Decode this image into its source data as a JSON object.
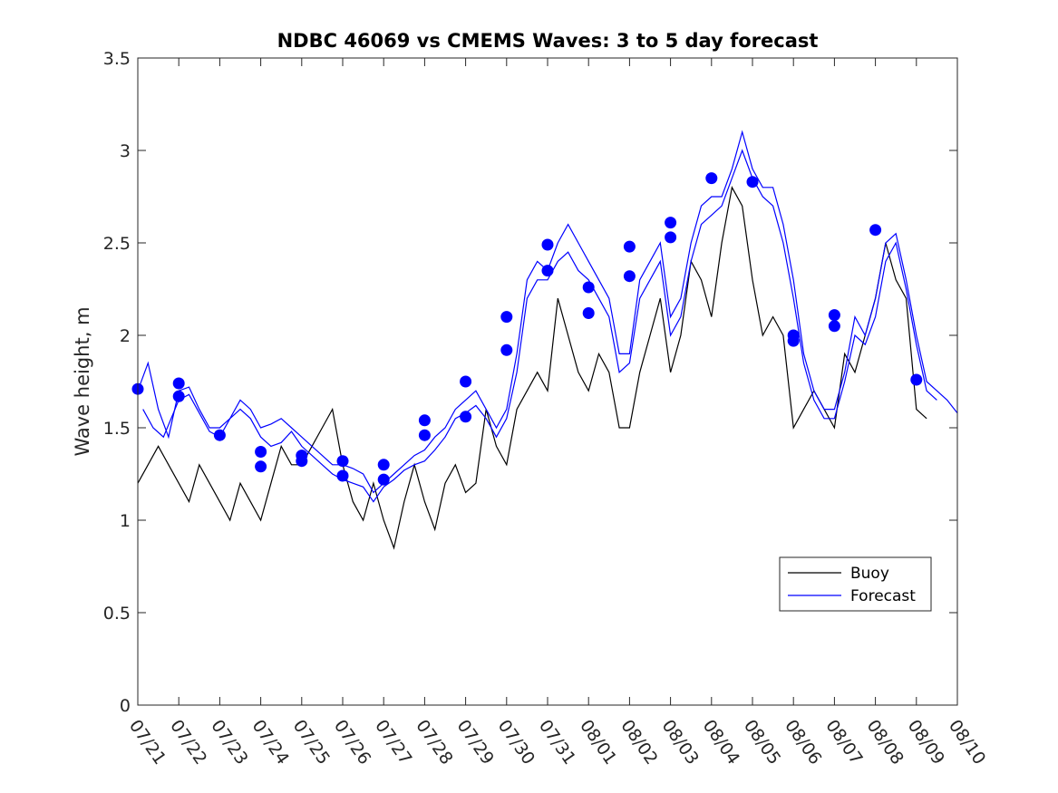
{
  "chart_data": {
    "type": "line",
    "title": "NDBC 46069 vs CMEMS Waves: 3 to 5 day forecast",
    "xlabel": "",
    "ylabel": "Wave height, m",
    "ylim": [
      0,
      3.5
    ],
    "yticks": [
      "0",
      "0.5",
      "1",
      "1.5",
      "2",
      "2.5",
      "3",
      "3.5"
    ],
    "xlim": [
      "07/21",
      "08/10"
    ],
    "xticks": [
      "07/21",
      "07/22",
      "07/23",
      "07/24",
      "07/25",
      "07/26",
      "07/27",
      "07/28",
      "07/29",
      "07/30",
      "07/31",
      "08/01",
      "08/02",
      "08/03",
      "08/04",
      "08/05",
      "08/06",
      "08/07",
      "08/08",
      "08/09",
      "08/10"
    ],
    "grid": false,
    "legend": {
      "position": "bottom-right",
      "entries": [
        "Buoy",
        "Forecast"
      ]
    },
    "colors": {
      "buoy": "#000000",
      "forecast": "#0000ff",
      "markers": "#0000ff"
    },
    "series": [
      {
        "name": "Buoy",
        "x": [
          "07/21 00:00",
          "07/21 06:00",
          "07/21 12:00",
          "07/21 18:00",
          "07/22 00:00",
          "07/22 06:00",
          "07/22 12:00",
          "07/22 18:00",
          "07/23 00:00",
          "07/23 06:00",
          "07/23 12:00",
          "07/23 18:00",
          "07/24 00:00",
          "07/24 06:00",
          "07/24 12:00",
          "07/24 18:00",
          "07/25 00:00",
          "07/25 06:00",
          "07/25 12:00",
          "07/25 18:00",
          "07/26 00:00",
          "07/26 06:00",
          "07/26 12:00",
          "07/26 18:00",
          "07/27 00:00",
          "07/27 06:00",
          "07/27 12:00",
          "07/27 18:00",
          "07/28 00:00",
          "07/28 06:00",
          "07/28 12:00",
          "07/28 18:00",
          "07/29 00:00",
          "07/29 06:00",
          "07/29 12:00",
          "07/29 18:00",
          "07/30 00:00",
          "07/30 06:00",
          "07/30 12:00",
          "07/30 18:00",
          "07/31 00:00",
          "07/31 06:00",
          "07/31 12:00",
          "07/31 18:00",
          "08/01 00:00",
          "08/01 06:00",
          "08/01 12:00",
          "08/01 18:00",
          "08/02 00:00",
          "08/02 06:00",
          "08/02 12:00",
          "08/02 18:00",
          "08/03 00:00",
          "08/03 06:00",
          "08/03 12:00",
          "08/03 18:00",
          "08/04 00:00",
          "08/04 06:00",
          "08/04 12:00",
          "08/04 18:00",
          "08/05 00:00",
          "08/05 06:00",
          "08/05 12:00",
          "08/05 18:00",
          "08/06 00:00",
          "08/06 06:00",
          "08/06 12:00",
          "08/06 18:00",
          "08/07 00:00",
          "08/07 06:00",
          "08/07 12:00",
          "08/07 18:00",
          "08/08 00:00",
          "08/08 06:00",
          "08/08 12:00",
          "08/08 18:00",
          "08/09 00:00",
          "08/09 06:00"
        ],
        "values": [
          1.2,
          1.3,
          1.4,
          1.3,
          1.2,
          1.1,
          1.3,
          1.2,
          1.1,
          1.0,
          1.2,
          1.1,
          1.0,
          1.2,
          1.4,
          1.3,
          1.3,
          1.4,
          1.5,
          1.6,
          1.3,
          1.1,
          1.0,
          1.2,
          1.0,
          0.85,
          1.1,
          1.3,
          1.1,
          0.95,
          1.2,
          1.3,
          1.15,
          1.2,
          1.6,
          1.4,
          1.3,
          1.6,
          1.7,
          1.8,
          1.7,
          2.2,
          2.0,
          1.8,
          1.7,
          1.9,
          1.8,
          1.5,
          1.5,
          1.8,
          2.0,
          2.2,
          1.8,
          2.0,
          2.4,
          2.3,
          2.1,
          2.5,
          2.8,
          2.7,
          2.3,
          2.0,
          2.1,
          2.0,
          1.5,
          1.6,
          1.7,
          1.6,
          1.5,
          1.9,
          1.8,
          2.0,
          2.2,
          2.5,
          2.3,
          2.2,
          1.6,
          1.55
        ]
      },
      {
        "name": "Forecast",
        "x": [
          "07/21 00:00",
          "07/21 06:00",
          "07/21 12:00",
          "07/21 18:00",
          "07/22 00:00",
          "07/22 06:00",
          "07/22 12:00",
          "07/22 18:00",
          "07/23 00:00",
          "07/23 06:00",
          "07/23 12:00",
          "07/23 18:00",
          "07/24 00:00",
          "07/24 06:00",
          "07/24 12:00",
          "07/24 18:00",
          "07/25 00:00",
          "07/25 06:00",
          "07/25 12:00",
          "07/25 18:00",
          "07/26 00:00",
          "07/26 06:00",
          "07/26 12:00",
          "07/26 18:00",
          "07/27 00:00",
          "07/27 06:00",
          "07/27 12:00",
          "07/27 18:00",
          "07/28 00:00",
          "07/28 06:00",
          "07/28 12:00",
          "07/28 18:00",
          "07/29 00:00",
          "07/29 06:00",
          "07/29 12:00",
          "07/29 18:00",
          "07/30 00:00",
          "07/30 06:00",
          "07/30 12:00",
          "07/30 18:00",
          "07/31 00:00",
          "07/31 06:00",
          "07/31 12:00",
          "07/31 18:00",
          "08/01 00:00",
          "08/01 06:00",
          "08/01 12:00",
          "08/01 18:00",
          "08/02 00:00",
          "08/02 06:00",
          "08/02 12:00",
          "08/02 18:00",
          "08/03 00:00",
          "08/03 06:00",
          "08/03 12:00",
          "08/03 18:00",
          "08/04 00:00",
          "08/04 06:00",
          "08/04 12:00",
          "08/04 18:00",
          "08/05 00:00",
          "08/05 06:00",
          "08/05 12:00",
          "08/05 18:00",
          "08/06 00:00",
          "08/06 06:00",
          "08/06 12:00",
          "08/06 18:00",
          "08/07 00:00",
          "08/07 06:00",
          "08/07 12:00",
          "08/07 18:00",
          "08/08 00:00",
          "08/08 06:00",
          "08/08 12:00",
          "08/08 18:00",
          "08/09 00:00",
          "08/09 06:00",
          "08/09 12:00",
          "08/09 18:00",
          "08/10 00:00"
        ],
        "values": [
          1.7,
          1.85,
          1.6,
          1.45,
          1.7,
          1.72,
          1.6,
          1.5,
          1.5,
          1.55,
          1.65,
          1.6,
          1.5,
          1.52,
          1.55,
          1.5,
          1.45,
          1.4,
          1.35,
          1.3,
          1.3,
          1.28,
          1.25,
          1.15,
          1.2,
          1.25,
          1.3,
          1.35,
          1.38,
          1.45,
          1.5,
          1.6,
          1.65,
          1.7,
          1.6,
          1.5,
          1.6,
          1.9,
          2.3,
          2.4,
          2.35,
          2.5,
          2.6,
          2.5,
          2.4,
          2.3,
          2.2,
          1.9,
          1.9,
          2.3,
          2.4,
          2.5,
          2.1,
          2.2,
          2.5,
          2.7,
          2.75,
          2.75,
          2.9,
          3.1,
          2.9,
          2.8,
          2.8,
          2.6,
          2.3,
          1.9,
          1.7,
          1.6,
          1.6,
          1.8,
          2.1,
          2.0,
          2.2,
          2.5,
          2.55,
          2.3,
          2.0,
          1.75,
          1.7,
          1.65,
          1.58
        ]
      },
      {
        "name": "",
        "x": [
          "07/21 03:00",
          "07/21 09:00",
          "07/21 15:00",
          "07/22 00:00",
          "07/22 06:00",
          "07/22 12:00",
          "07/22 18:00",
          "07/23 00:00",
          "07/23 06:00",
          "07/23 12:00",
          "07/23 18:00",
          "07/24 00:00",
          "07/24 06:00",
          "07/24 12:00",
          "07/24 18:00",
          "07/25 00:00",
          "07/25 06:00",
          "07/25 12:00",
          "07/25 18:00",
          "07/26 00:00",
          "07/26 06:00",
          "07/26 12:00",
          "07/26 18:00",
          "07/27 00:00",
          "07/27 06:00",
          "07/27 12:00",
          "07/27 18:00",
          "07/28 00:00",
          "07/28 06:00",
          "07/28 12:00",
          "07/28 18:00",
          "07/29 00:00",
          "07/29 06:00",
          "07/29 12:00",
          "07/29 18:00",
          "07/30 00:00",
          "07/30 06:00",
          "07/30 12:00",
          "07/30 18:00",
          "07/31 00:00",
          "07/31 06:00",
          "07/31 12:00",
          "07/31 18:00",
          "08/01 00:00",
          "08/01 06:00",
          "08/01 12:00",
          "08/01 18:00",
          "08/02 00:00",
          "08/02 06:00",
          "08/02 12:00",
          "08/02 18:00",
          "08/03 00:00",
          "08/03 06:00",
          "08/03 12:00",
          "08/03 18:00",
          "08/04 00:00",
          "08/04 06:00",
          "08/04 12:00",
          "08/04 18:00",
          "08/05 00:00",
          "08/05 06:00",
          "08/05 12:00",
          "08/05 18:00",
          "08/06 00:00",
          "08/06 06:00",
          "08/06 12:00",
          "08/06 18:00",
          "08/07 00:00",
          "08/07 06:00",
          "08/07 12:00",
          "08/07 18:00",
          "08/08 00:00",
          "08/08 06:00",
          "08/08 12:00",
          "08/08 18:00",
          "08/09 00:00",
          "08/09 06:00",
          "08/09 12:00"
        ],
        "values": [
          1.6,
          1.5,
          1.45,
          1.65,
          1.68,
          1.58,
          1.48,
          1.45,
          1.55,
          1.6,
          1.55,
          1.45,
          1.4,
          1.42,
          1.48,
          1.4,
          1.35,
          1.3,
          1.25,
          1.22,
          1.2,
          1.18,
          1.1,
          1.18,
          1.22,
          1.27,
          1.3,
          1.32,
          1.38,
          1.45,
          1.55,
          1.58,
          1.62,
          1.55,
          1.45,
          1.55,
          1.8,
          2.2,
          2.3,
          2.3,
          2.4,
          2.45,
          2.35,
          2.3,
          2.2,
          2.1,
          1.8,
          1.85,
          2.2,
          2.3,
          2.4,
          2.0,
          2.1,
          2.4,
          2.6,
          2.65,
          2.7,
          2.85,
          3.0,
          2.85,
          2.75,
          2.7,
          2.5,
          2.2,
          1.85,
          1.65,
          1.55,
          1.55,
          1.75,
          2.0,
          1.95,
          2.1,
          2.4,
          2.5,
          2.25,
          1.95,
          1.7,
          1.65
        ]
      }
    ],
    "markers": {
      "x": [
        "07/21 00:00",
        "07/22 00:00",
        "07/22 00:00",
        "07/23 00:00",
        "07/24 00:00",
        "07/24 00:00",
        "07/25 00:00",
        "07/25 00:00",
        "07/26 00:00",
        "07/26 00:00",
        "07/27 00:00",
        "07/27 00:00",
        "07/28 00:00",
        "07/28 00:00",
        "07/29 00:00",
        "07/29 00:00",
        "07/30 00:00",
        "07/30 00:00",
        "07/31 00:00",
        "07/31 00:00",
        "08/01 00:00",
        "08/01 00:00",
        "08/02 00:00",
        "08/02 00:00",
        "08/03 00:00",
        "08/03 00:00",
        "08/04 00:00",
        "08/05 00:00",
        "08/06 00:00",
        "08/06 00:00",
        "08/07 00:00",
        "08/07 00:00",
        "08/08 00:00",
        "08/09 00:00"
      ],
      "values": [
        1.71,
        1.74,
        1.67,
        1.46,
        1.37,
        1.29,
        1.35,
        1.32,
        1.32,
        1.24,
        1.3,
        1.22,
        1.54,
        1.46,
        1.75,
        1.56,
        2.1,
        1.92,
        2.49,
        2.35,
        2.26,
        2.12,
        2.48,
        2.32,
        2.61,
        2.53,
        2.85,
        2.83,
        2.0,
        1.97,
        2.11,
        2.05,
        2.57,
        1.76
      ]
    }
  }
}
